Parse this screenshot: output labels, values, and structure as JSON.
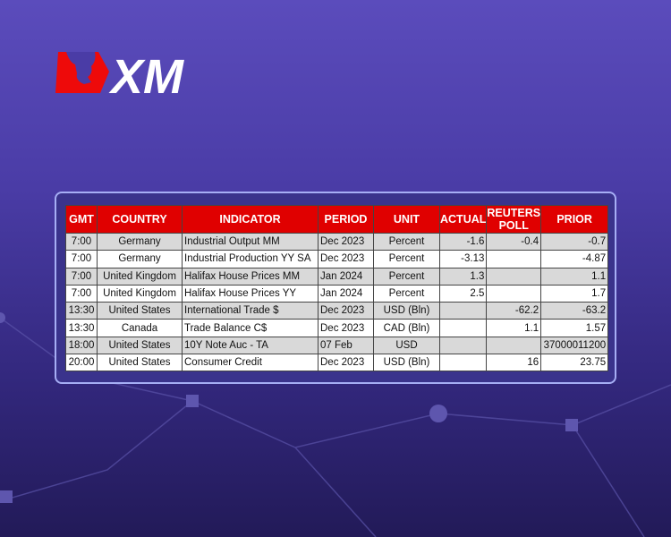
{
  "brand": {
    "logo_text": "XM",
    "colors": {
      "red": "#e00000",
      "bg_top": "#5b4cbc",
      "bg_bottom": "#221a58"
    }
  },
  "table": {
    "headers": [
      "GMT",
      "COUNTRY",
      "INDICATOR",
      "PERIOD",
      "UNIT",
      "ACTUAL",
      "REUTERS POLL",
      "PRIOR"
    ],
    "rows": [
      [
        "7:00",
        "Germany",
        "Industrial Output MM",
        "Dec 2023",
        "Percent",
        "-1.6",
        "-0.4",
        "-0.7"
      ],
      [
        "7:00",
        "Germany",
        "Industrial Production YY SA",
        "Dec 2023",
        "Percent",
        "-3.13",
        "",
        "-4.87"
      ],
      [
        "7:00",
        "United Kingdom",
        "Halifax House Prices MM",
        "Jan 2024",
        "Percent",
        "1.3",
        "",
        "1.1"
      ],
      [
        "7:00",
        "United Kingdom",
        "Halifax House Prices YY",
        "Jan 2024",
        "Percent",
        "2.5",
        "",
        "1.7"
      ],
      [
        "13:30",
        "United States",
        "International Trade $",
        "Dec 2023",
        "USD (Bln)",
        "",
        "-62.2",
        "-63.2"
      ],
      [
        "13:30",
        "Canada",
        "Trade Balance C$",
        "Dec 2023",
        "CAD (Bln)",
        "",
        "1.1",
        "1.57"
      ],
      [
        "18:00",
        "United States",
        "10Y Note Auc - TA",
        "07 Feb",
        "USD",
        "",
        "",
        "37000011200"
      ],
      [
        "20:00",
        "United States",
        "Consumer Credit",
        "Dec 2023",
        "USD (Bln)",
        "",
        "16",
        "23.75"
      ]
    ]
  }
}
